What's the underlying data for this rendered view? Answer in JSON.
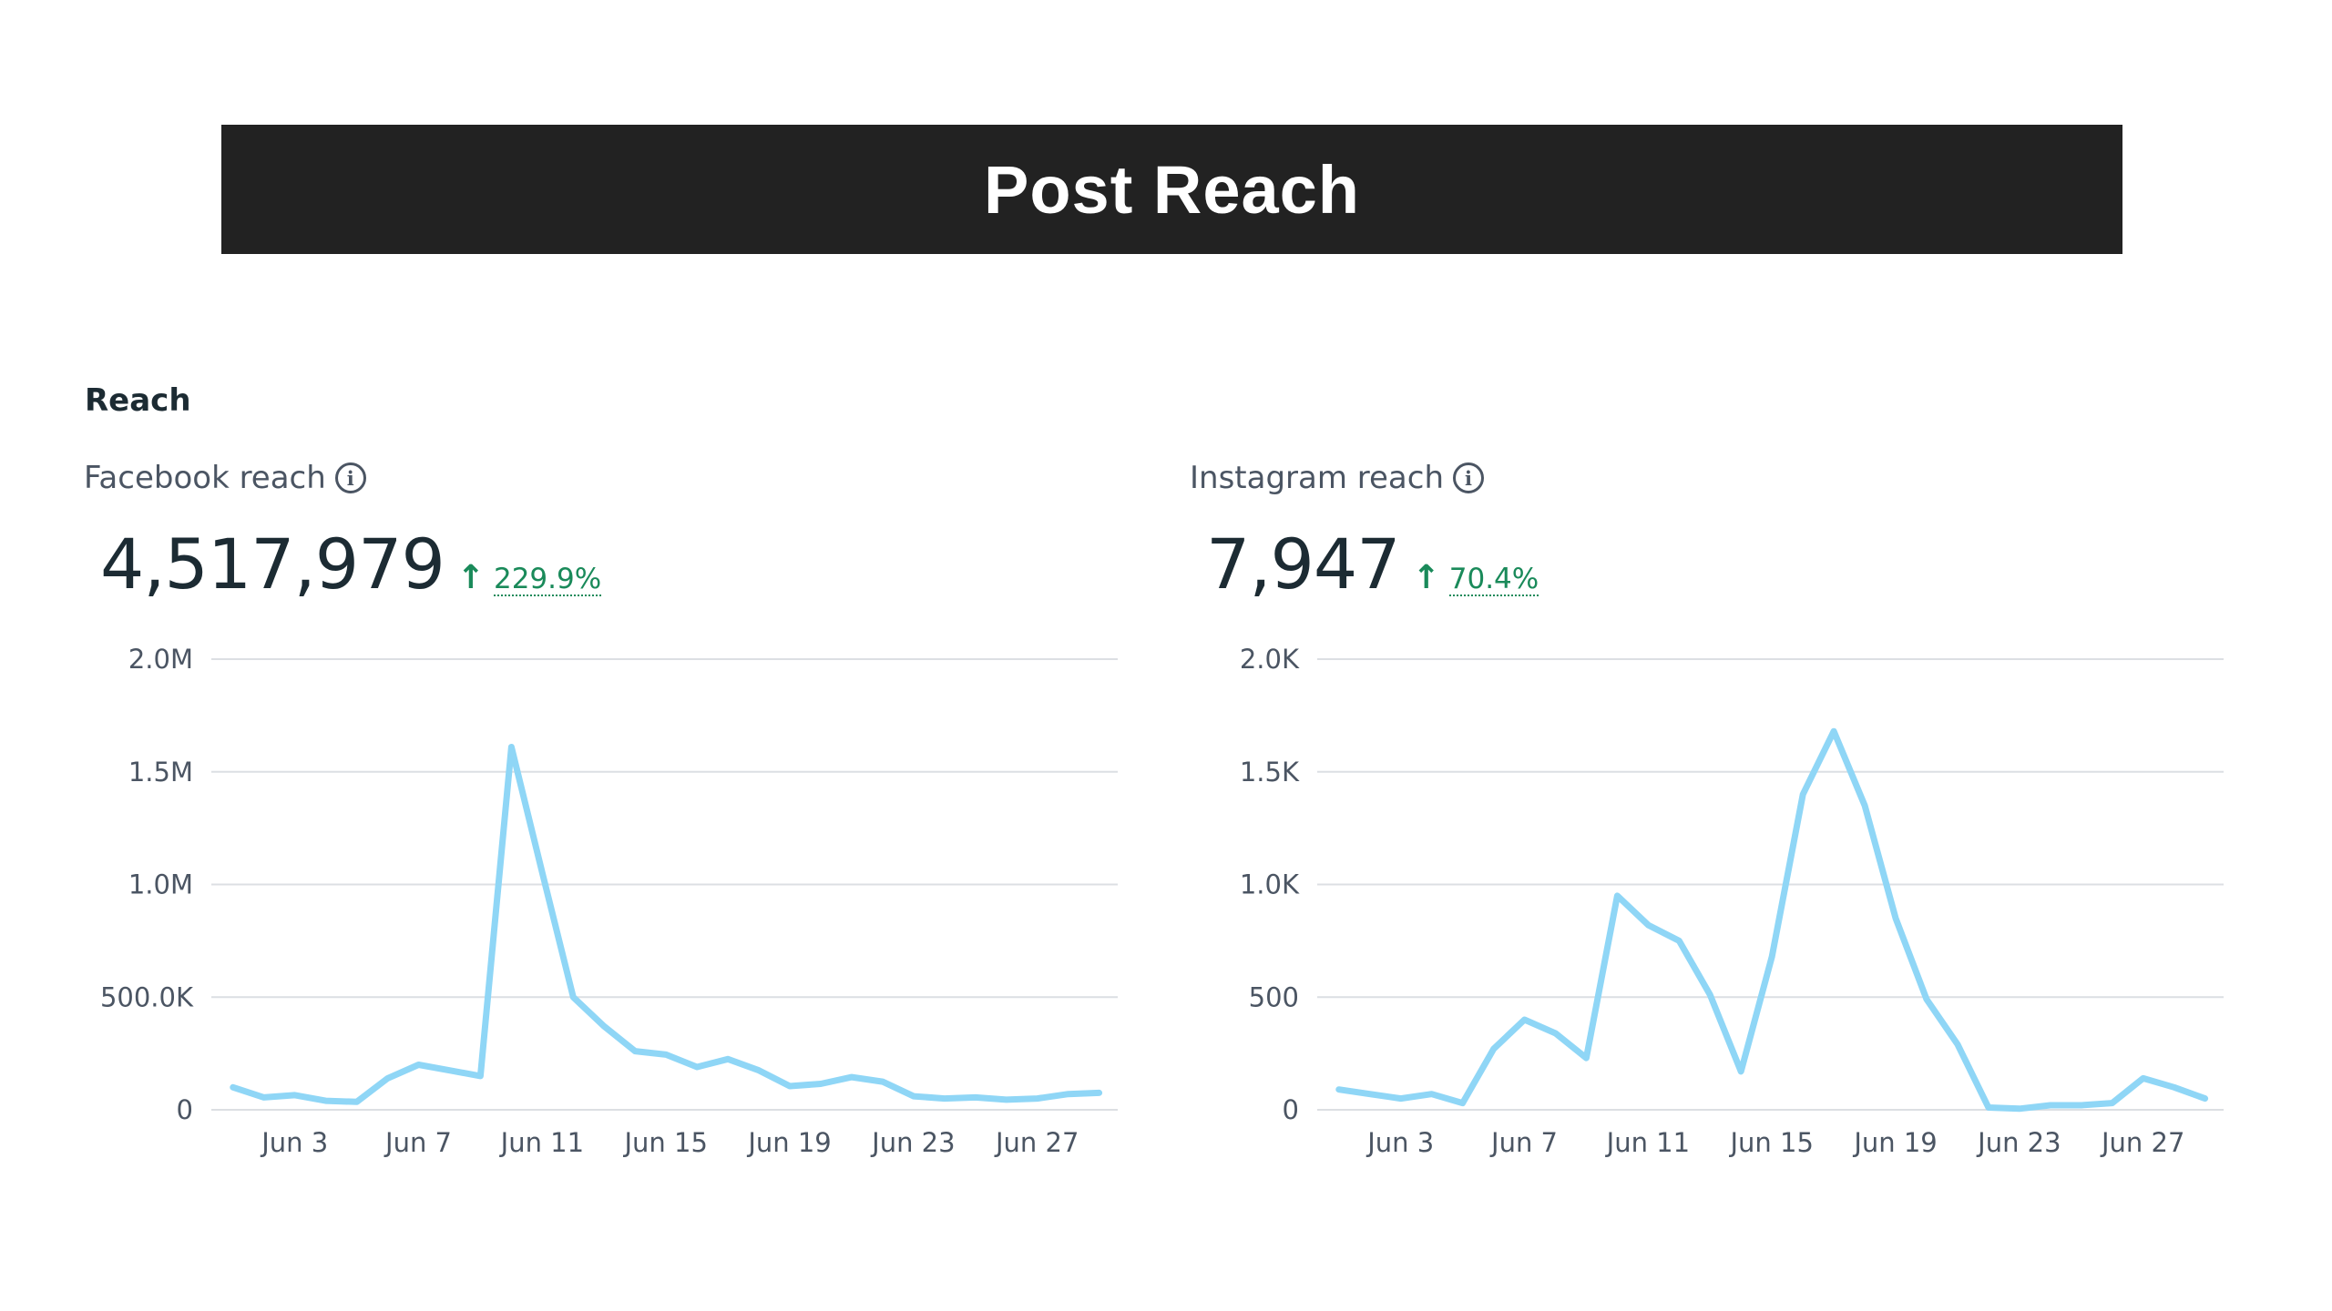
{
  "banner": {
    "title": "Post Reach"
  },
  "section": {
    "title": "Reach"
  },
  "accent": {
    "line": "#8fd6f6",
    "positive": "#1a8a5a",
    "grid": "#dcdfe3"
  },
  "chart_data": [
    {
      "type": "line",
      "title": "Facebook reach",
      "info_icon": "info-icon",
      "total": "4,517,979",
      "change": "229.9%",
      "change_direction": "up",
      "ylim": [
        0,
        2000000
      ],
      "y_ticks": [
        0,
        500000,
        1000000,
        1500000,
        2000000
      ],
      "y_tick_labels": [
        "0",
        "500.0K",
        "1.0M",
        "1.5M",
        "2.0M"
      ],
      "x_tick_labels": [
        "Jun 3",
        "Jun 7",
        "Jun 11",
        "Jun 15",
        "Jun 19",
        "Jun 23",
        "Jun 27"
      ],
      "x_tick_days": [
        3,
        7,
        11,
        15,
        19,
        23,
        27
      ],
      "x_days_range": [
        0.3,
        29.6
      ],
      "x_days": [
        1,
        2,
        3,
        4,
        5,
        6,
        7,
        8,
        9,
        10,
        11,
        12,
        13,
        14,
        15,
        16,
        17,
        18,
        19,
        20,
        21,
        22,
        23,
        24,
        25,
        26,
        27,
        28,
        29
      ],
      "series": [
        {
          "values": [
            100000,
            55000,
            65000,
            40000,
            35000,
            140000,
            200000,
            175000,
            150000,
            1610000,
            1050000,
            500000,
            370000,
            260000,
            245000,
            190000,
            225000,
            175000,
            105000,
            115000,
            145000,
            125000,
            60000,
            50000,
            55000,
            45000,
            50000,
            70000,
            75000
          ]
        }
      ]
    },
    {
      "type": "line",
      "title": "Instagram reach",
      "info_icon": "info-icon",
      "total": "7,947",
      "change": "70.4%",
      "change_direction": "up",
      "ylim": [
        0,
        2000
      ],
      "y_ticks": [
        0,
        500,
        1000,
        1500,
        2000
      ],
      "y_tick_labels": [
        "0",
        "500",
        "1.0K",
        "1.5K",
        "2.0K"
      ],
      "x_tick_labels": [
        "Jun 3",
        "Jun 7",
        "Jun 11",
        "Jun 15",
        "Jun 19",
        "Jun 23",
        "Jun 27"
      ],
      "x_tick_days": [
        3,
        7,
        11,
        15,
        19,
        23,
        27
      ],
      "x_days_range": [
        0.3,
        29.6
      ],
      "x_days": [
        1,
        2,
        3,
        4,
        5,
        6,
        7,
        8,
        9,
        10,
        11,
        12,
        13,
        14,
        15,
        16,
        17,
        18,
        19,
        20,
        21,
        22,
        23,
        24,
        25,
        26,
        27,
        28,
        29
      ],
      "series": [
        {
          "values": [
            90,
            70,
            50,
            70,
            30,
            270,
            400,
            340,
            230,
            950,
            820,
            750,
            510,
            170,
            680,
            1400,
            1680,
            1350,
            850,
            490,
            290,
            10,
            5,
            20,
            20,
            30,
            140,
            100,
            50
          ]
        }
      ]
    }
  ]
}
